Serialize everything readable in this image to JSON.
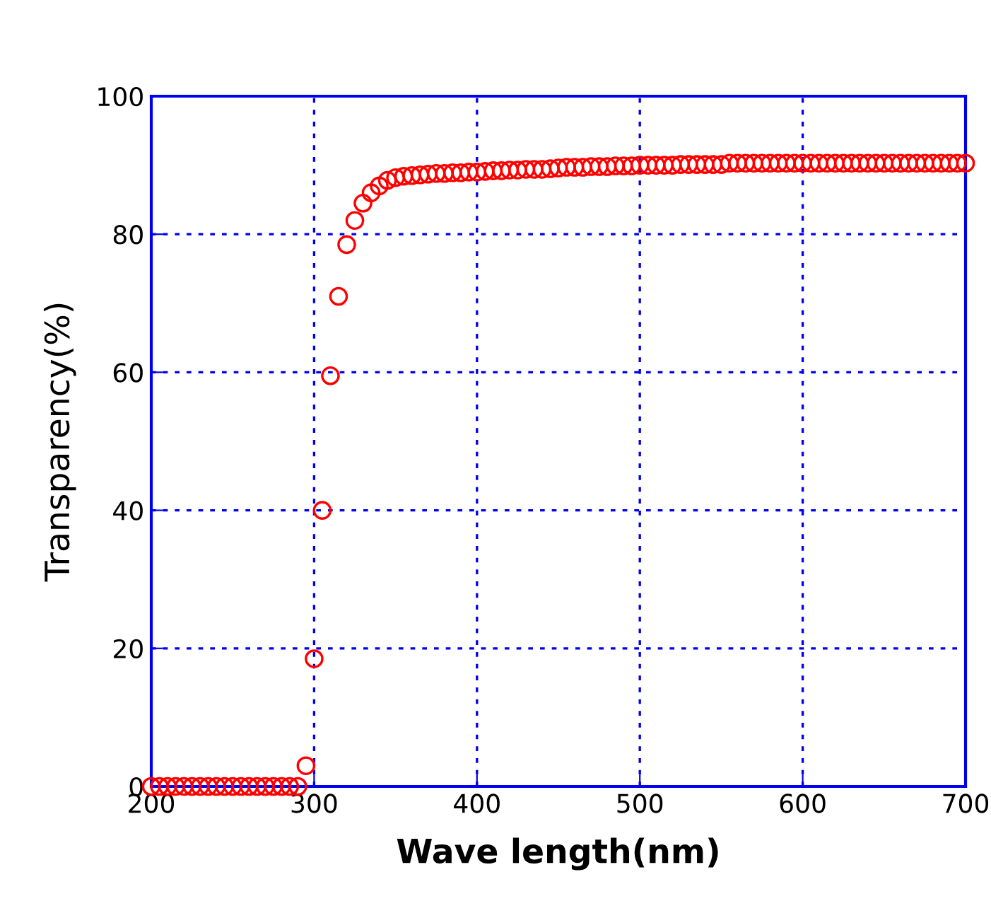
{
  "chart_data": {
    "type": "scatter",
    "xlabel": "Wave length(nm)",
    "ylabel": "Transparency(%)",
    "xlim": [
      200,
      700
    ],
    "xticks": [
      200,
      300,
      400,
      500,
      600,
      700
    ],
    "ylim": [
      0,
      100
    ],
    "yticks": [
      0,
      20,
      40,
      60,
      80,
      100
    ],
    "grid": true,
    "marker": "circle",
    "series": [
      {
        "color": "#ff0000",
        "x": [
          200,
          205,
          210,
          215,
          220,
          225,
          230,
          235,
          240,
          245,
          250,
          255,
          260,
          265,
          270,
          275,
          280,
          285,
          290,
          295,
          300,
          305,
          310,
          315,
          320,
          325,
          330,
          335,
          340,
          345,
          350,
          355,
          360,
          365,
          370,
          375,
          380,
          385,
          390,
          395,
          400,
          405,
          410,
          415,
          420,
          425,
          430,
          435,
          440,
          445,
          450,
          455,
          460,
          465,
          470,
          475,
          480,
          485,
          490,
          495,
          500,
          505,
          510,
          515,
          520,
          525,
          530,
          535,
          540,
          545,
          550,
          555,
          560,
          565,
          570,
          575,
          580,
          585,
          590,
          595,
          600,
          605,
          610,
          615,
          620,
          625,
          630,
          635,
          640,
          645,
          650,
          655,
          660,
          665,
          670,
          675,
          680,
          685,
          690,
          695,
          700
        ],
        "values": [
          0,
          0,
          0,
          0,
          0,
          0,
          0,
          0,
          0,
          0,
          0,
          0,
          0,
          0,
          0,
          0,
          0,
          0,
          0,
          3,
          18.5,
          40,
          59.5,
          71,
          78.5,
          82,
          84.5,
          86,
          87,
          87.8,
          88.2,
          88.4,
          88.5,
          88.6,
          88.7,
          88.8,
          88.8,
          88.9,
          88.9,
          89,
          89,
          89.1,
          89.2,
          89.2,
          89.3,
          89.3,
          89.4,
          89.4,
          89.4,
          89.5,
          89.6,
          89.7,
          89.7,
          89.7,
          89.8,
          89.8,
          89.8,
          89.9,
          89.9,
          89.9,
          90,
          90,
          90,
          90,
          90,
          90.1,
          90.1,
          90.1,
          90.1,
          90.1,
          90.1,
          90.3,
          90.3,
          90.3,
          90.3,
          90.3,
          90.3,
          90.3,
          90.3,
          90.3,
          90.3,
          90.3,
          90.3,
          90.3,
          90.3,
          90.3,
          90.3,
          90.3,
          90.3,
          90.3,
          90.3,
          90.3,
          90.3,
          90.3,
          90.3,
          90.3,
          90.3,
          90.3,
          90.3,
          90.3,
          90.3
        ]
      }
    ]
  }
}
